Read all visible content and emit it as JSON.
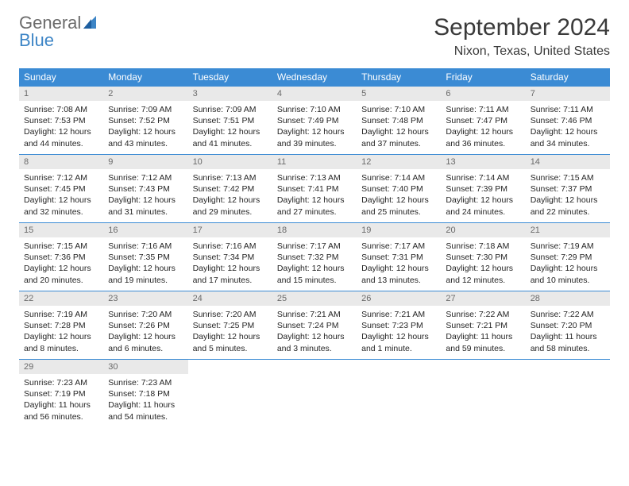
{
  "logo": {
    "text1": "General",
    "text2": "Blue"
  },
  "title": "September 2024",
  "location": "Nixon, Texas, United States",
  "colors": {
    "header_bg": "#3b8bd4",
    "header_text": "#ffffff",
    "daynum_bg": "#e9e9e9",
    "daynum_text": "#6a6a6a",
    "border": "#3b8bd4",
    "logo_grey": "#6b6b6b",
    "logo_blue": "#3d85c6"
  },
  "weekdays": [
    "Sunday",
    "Monday",
    "Tuesday",
    "Wednesday",
    "Thursday",
    "Friday",
    "Saturday"
  ],
  "weeks": [
    [
      {
        "num": "1",
        "sunrise": "7:08 AM",
        "sunset": "7:53 PM",
        "daylight": "12 hours and 44 minutes."
      },
      {
        "num": "2",
        "sunrise": "7:09 AM",
        "sunset": "7:52 PM",
        "daylight": "12 hours and 43 minutes."
      },
      {
        "num": "3",
        "sunrise": "7:09 AM",
        "sunset": "7:51 PM",
        "daylight": "12 hours and 41 minutes."
      },
      {
        "num": "4",
        "sunrise": "7:10 AM",
        "sunset": "7:49 PM",
        "daylight": "12 hours and 39 minutes."
      },
      {
        "num": "5",
        "sunrise": "7:10 AM",
        "sunset": "7:48 PM",
        "daylight": "12 hours and 37 minutes."
      },
      {
        "num": "6",
        "sunrise": "7:11 AM",
        "sunset": "7:47 PM",
        "daylight": "12 hours and 36 minutes."
      },
      {
        "num": "7",
        "sunrise": "7:11 AM",
        "sunset": "7:46 PM",
        "daylight": "12 hours and 34 minutes."
      }
    ],
    [
      {
        "num": "8",
        "sunrise": "7:12 AM",
        "sunset": "7:45 PM",
        "daylight": "12 hours and 32 minutes."
      },
      {
        "num": "9",
        "sunrise": "7:12 AM",
        "sunset": "7:43 PM",
        "daylight": "12 hours and 31 minutes."
      },
      {
        "num": "10",
        "sunrise": "7:13 AM",
        "sunset": "7:42 PM",
        "daylight": "12 hours and 29 minutes."
      },
      {
        "num": "11",
        "sunrise": "7:13 AM",
        "sunset": "7:41 PM",
        "daylight": "12 hours and 27 minutes."
      },
      {
        "num": "12",
        "sunrise": "7:14 AM",
        "sunset": "7:40 PM",
        "daylight": "12 hours and 25 minutes."
      },
      {
        "num": "13",
        "sunrise": "7:14 AM",
        "sunset": "7:39 PM",
        "daylight": "12 hours and 24 minutes."
      },
      {
        "num": "14",
        "sunrise": "7:15 AM",
        "sunset": "7:37 PM",
        "daylight": "12 hours and 22 minutes."
      }
    ],
    [
      {
        "num": "15",
        "sunrise": "7:15 AM",
        "sunset": "7:36 PM",
        "daylight": "12 hours and 20 minutes."
      },
      {
        "num": "16",
        "sunrise": "7:16 AM",
        "sunset": "7:35 PM",
        "daylight": "12 hours and 19 minutes."
      },
      {
        "num": "17",
        "sunrise": "7:16 AM",
        "sunset": "7:34 PM",
        "daylight": "12 hours and 17 minutes."
      },
      {
        "num": "18",
        "sunrise": "7:17 AM",
        "sunset": "7:32 PM",
        "daylight": "12 hours and 15 minutes."
      },
      {
        "num": "19",
        "sunrise": "7:17 AM",
        "sunset": "7:31 PM",
        "daylight": "12 hours and 13 minutes."
      },
      {
        "num": "20",
        "sunrise": "7:18 AM",
        "sunset": "7:30 PM",
        "daylight": "12 hours and 12 minutes."
      },
      {
        "num": "21",
        "sunrise": "7:19 AM",
        "sunset": "7:29 PM",
        "daylight": "12 hours and 10 minutes."
      }
    ],
    [
      {
        "num": "22",
        "sunrise": "7:19 AM",
        "sunset": "7:28 PM",
        "daylight": "12 hours and 8 minutes."
      },
      {
        "num": "23",
        "sunrise": "7:20 AM",
        "sunset": "7:26 PM",
        "daylight": "12 hours and 6 minutes."
      },
      {
        "num": "24",
        "sunrise": "7:20 AM",
        "sunset": "7:25 PM",
        "daylight": "12 hours and 5 minutes."
      },
      {
        "num": "25",
        "sunrise": "7:21 AM",
        "sunset": "7:24 PM",
        "daylight": "12 hours and 3 minutes."
      },
      {
        "num": "26",
        "sunrise": "7:21 AM",
        "sunset": "7:23 PM",
        "daylight": "12 hours and 1 minute."
      },
      {
        "num": "27",
        "sunrise": "7:22 AM",
        "sunset": "7:21 PM",
        "daylight": "11 hours and 59 minutes."
      },
      {
        "num": "28",
        "sunrise": "7:22 AM",
        "sunset": "7:20 PM",
        "daylight": "11 hours and 58 minutes."
      }
    ],
    [
      {
        "num": "29",
        "sunrise": "7:23 AM",
        "sunset": "7:19 PM",
        "daylight": "11 hours and 56 minutes."
      },
      {
        "num": "30",
        "sunrise": "7:23 AM",
        "sunset": "7:18 PM",
        "daylight": "11 hours and 54 minutes."
      },
      null,
      null,
      null,
      null,
      null
    ]
  ],
  "labels": {
    "sunrise": "Sunrise:",
    "sunset": "Sunset:",
    "daylight": "Daylight:"
  }
}
